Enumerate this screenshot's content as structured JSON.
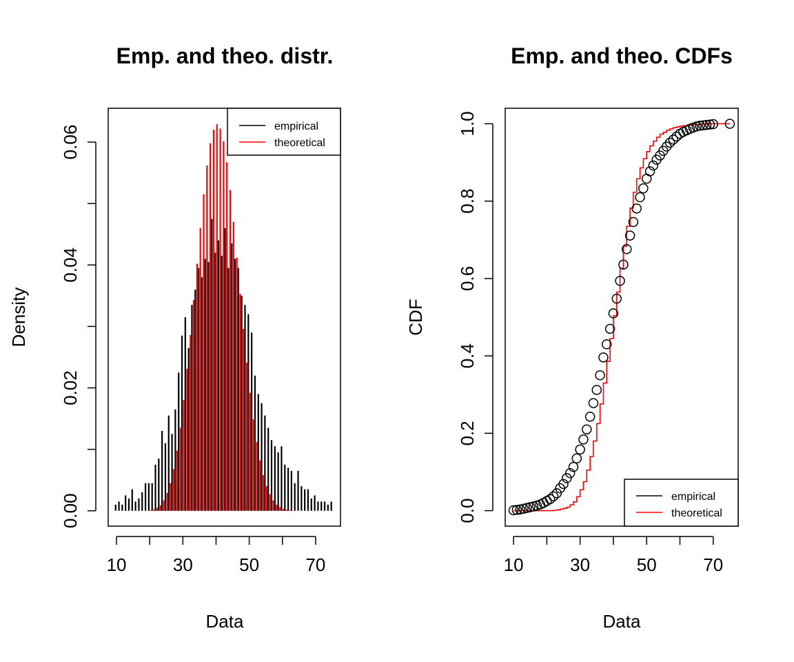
{
  "figure": {
    "panels": [
      {
        "title": "Emp. and theo. distr.",
        "xlabel": "Data",
        "ylabel": "Density"
      },
      {
        "title": "Emp. and theo. CDFs",
        "xlabel": "Data",
        "ylabel": "CDF"
      }
    ]
  },
  "colors": {
    "empirical": "#000000",
    "theoretical": "#ff0000"
  },
  "chart_data": [
    {
      "type": "bar",
      "title": "Emp. and theo. distr.",
      "xlabel": "Data",
      "ylabel": "Density",
      "xlim": [
        7.5,
        77.5
      ],
      "ylim": [
        -0.0025,
        0.0655
      ],
      "x_ticks": [
        10,
        20,
        30,
        40,
        50,
        60,
        70
      ],
      "x_tick_labels": [
        "10",
        "30",
        "50",
        "70"
      ],
      "y_ticks": [
        0,
        0.01,
        0.02,
        0.03,
        0.04,
        0.05,
        0.06
      ],
      "y_tick_labels": [
        "0.00",
        "0.02",
        "0.04",
        "0.06"
      ],
      "legend": {
        "position": "top-right",
        "entries": [
          "empirical",
          "theoretical"
        ]
      },
      "x": [
        10,
        11,
        12,
        13,
        14,
        15,
        16,
        17,
        18,
        19,
        20,
        21,
        22,
        23,
        24,
        25,
        26,
        27,
        28,
        29,
        30,
        31,
        32,
        33,
        34,
        35,
        36,
        37,
        38,
        39,
        40,
        41,
        42,
        43,
        44,
        45,
        46,
        47,
        48,
        49,
        50,
        51,
        52,
        53,
        54,
        55,
        56,
        57,
        58,
        59,
        60,
        61,
        62,
        63,
        64,
        65,
        66,
        67,
        68,
        69,
        70,
        71,
        72,
        73,
        74,
        75
      ],
      "series": [
        {
          "name": "empirical",
          "values": [
            0.001,
            0.0015,
            0.001,
            0.0025,
            0.002,
            0.0035,
            0.0015,
            0.002,
            0.003,
            0.0045,
            0.0045,
            0.0045,
            0.0075,
            0.0085,
            0.013,
            0.011,
            0.0155,
            0.0125,
            0.0165,
            0.0225,
            0.0285,
            0.0315,
            0.0265,
            0.0335,
            0.036,
            0.0395,
            0.038,
            0.041,
            0.0405,
            0.0475,
            0.042,
            0.044,
            0.0415,
            0.046,
            0.0395,
            0.0435,
            0.041,
            0.0395,
            0.035,
            0.0335,
            0.032,
            0.029,
            0.022,
            0.019,
            0.0175,
            0.0155,
            0.0135,
            0.0115,
            0.0105,
            0.0095,
            0.0105,
            0.0075,
            0.007,
            0.0065,
            0.0045,
            0.0065,
            0.004,
            0.0035,
            0.0035,
            0.002,
            0.0025,
            0.0015,
            0.0015,
            0.0015,
            0.001,
            0.0015
          ]
        },
        {
          "name": "theoretical",
          "values": [
            0,
            0,
            0,
            0,
            0,
            0,
            0,
            0,
            0,
            0,
            0.0001,
            0.0002,
            0.0005,
            0.0009,
            0.0017,
            0.0029,
            0.0045,
            0.0068,
            0.0098,
            0.0135,
            0.018,
            0.0231,
            0.0286,
            0.0343,
            0.0402,
            0.046,
            0.0515,
            0.0562,
            0.0598,
            0.062,
            0.0629,
            0.0622,
            0.0601,
            0.0567,
            0.0522,
            0.047,
            0.0412,
            0.0353,
            0.0296,
            0.0241,
            0.0192,
            0.0149,
            0.0112,
            0.0082,
            0.0058,
            0.004,
            0.0027,
            0.0017,
            0.001,
            0.0006,
            0.0003,
            0.0002,
            0.0001,
            0,
            0,
            0,
            0,
            0,
            0,
            0,
            0,
            0,
            0,
            0,
            0,
            0
          ]
        }
      ]
    },
    {
      "type": "line",
      "title": "Emp. and theo. CDFs",
      "xlabel": "Data",
      "ylabel": "CDF",
      "xlim": [
        7.5,
        77.5
      ],
      "ylim": [
        -0.04,
        1.04
      ],
      "x_ticks": [
        10,
        20,
        30,
        40,
        50,
        60,
        70
      ],
      "x_tick_labels": [
        "10",
        "30",
        "50",
        "70"
      ],
      "y_ticks": [
        0,
        0.2,
        0.4,
        0.6,
        0.8,
        1.0
      ],
      "y_tick_labels": [
        "0.0",
        "0.2",
        "0.4",
        "0.6",
        "0.8",
        "1.0"
      ],
      "legend": {
        "position": "bottom-right",
        "entries": [
          "empirical",
          "theoretical"
        ]
      },
      "series": [
        {
          "name": "empirical",
          "style": "points",
          "x": [
            10,
            11,
            12,
            13,
            14,
            15,
            16,
            17,
            18,
            19,
            20,
            21,
            22,
            23,
            24,
            25,
            26,
            27,
            28,
            29,
            30,
            31,
            32,
            33,
            34,
            35,
            36,
            37,
            38,
            39,
            40,
            41,
            42,
            43,
            44,
            45,
            46,
            47,
            48,
            49,
            50,
            51,
            52,
            53,
            54,
            55,
            56,
            57,
            58,
            59,
            60,
            61,
            62,
            63,
            64,
            65,
            66,
            67,
            68,
            69,
            70,
            75
          ],
          "y": [
            0.001,
            0.002,
            0.003,
            0.005,
            0.007,
            0.009,
            0.011,
            0.013,
            0.016,
            0.02,
            0.025,
            0.03,
            0.037,
            0.045,
            0.058,
            0.069,
            0.084,
            0.097,
            0.113,
            0.135,
            0.158,
            0.184,
            0.21,
            0.243,
            0.278,
            0.312,
            0.35,
            0.396,
            0.43,
            0.47,
            0.51,
            0.548,
            0.594,
            0.636,
            0.676,
            0.711,
            0.746,
            0.781,
            0.81,
            0.833,
            0.858,
            0.877,
            0.892,
            0.907,
            0.918,
            0.93,
            0.941,
            0.951,
            0.959,
            0.967,
            0.974,
            0.979,
            0.983,
            0.987,
            0.99,
            0.993,
            0.995,
            0.996,
            0.997,
            0.998,
            0.999,
            1.0
          ]
        },
        {
          "name": "theoretical",
          "style": "step",
          "x": [
            10,
            11,
            12,
            13,
            14,
            15,
            16,
            17,
            18,
            19,
            20,
            21,
            22,
            23,
            24,
            25,
            26,
            27,
            28,
            29,
            30,
            31,
            32,
            33,
            34,
            35,
            36,
            37,
            38,
            39,
            40,
            41,
            42,
            43,
            44,
            45,
            46,
            47,
            48,
            49,
            50,
            51,
            52,
            53,
            54,
            55,
            56,
            57,
            58,
            59,
            60,
            61,
            62,
            63,
            64,
            65,
            66,
            67,
            68,
            69,
            70,
            71,
            72,
            73,
            74,
            75
          ],
          "y": [
            0,
            0,
            0,
            0,
            0,
            0,
            0,
            0,
            0,
            0,
            0,
            0,
            0.001,
            0.002,
            0.004,
            0.006,
            0.009,
            0.015,
            0.023,
            0.036,
            0.054,
            0.075,
            0.105,
            0.14,
            0.18,
            0.225,
            0.276,
            0.33,
            0.386,
            0.445,
            0.504,
            0.565,
            0.626,
            0.683,
            0.735,
            0.782,
            0.823,
            0.858,
            0.886,
            0.91,
            0.928,
            0.943,
            0.955,
            0.965,
            0.973,
            0.978,
            0.983,
            0.987,
            0.99,
            0.992,
            0.994,
            0.995,
            0.996,
            0.997,
            0.998,
            0.998,
            0.999,
            0.999,
            1.0,
            1.0,
            1.0,
            1.0,
            1.0,
            1.0,
            1.0,
            1.0
          ]
        }
      ]
    }
  ]
}
